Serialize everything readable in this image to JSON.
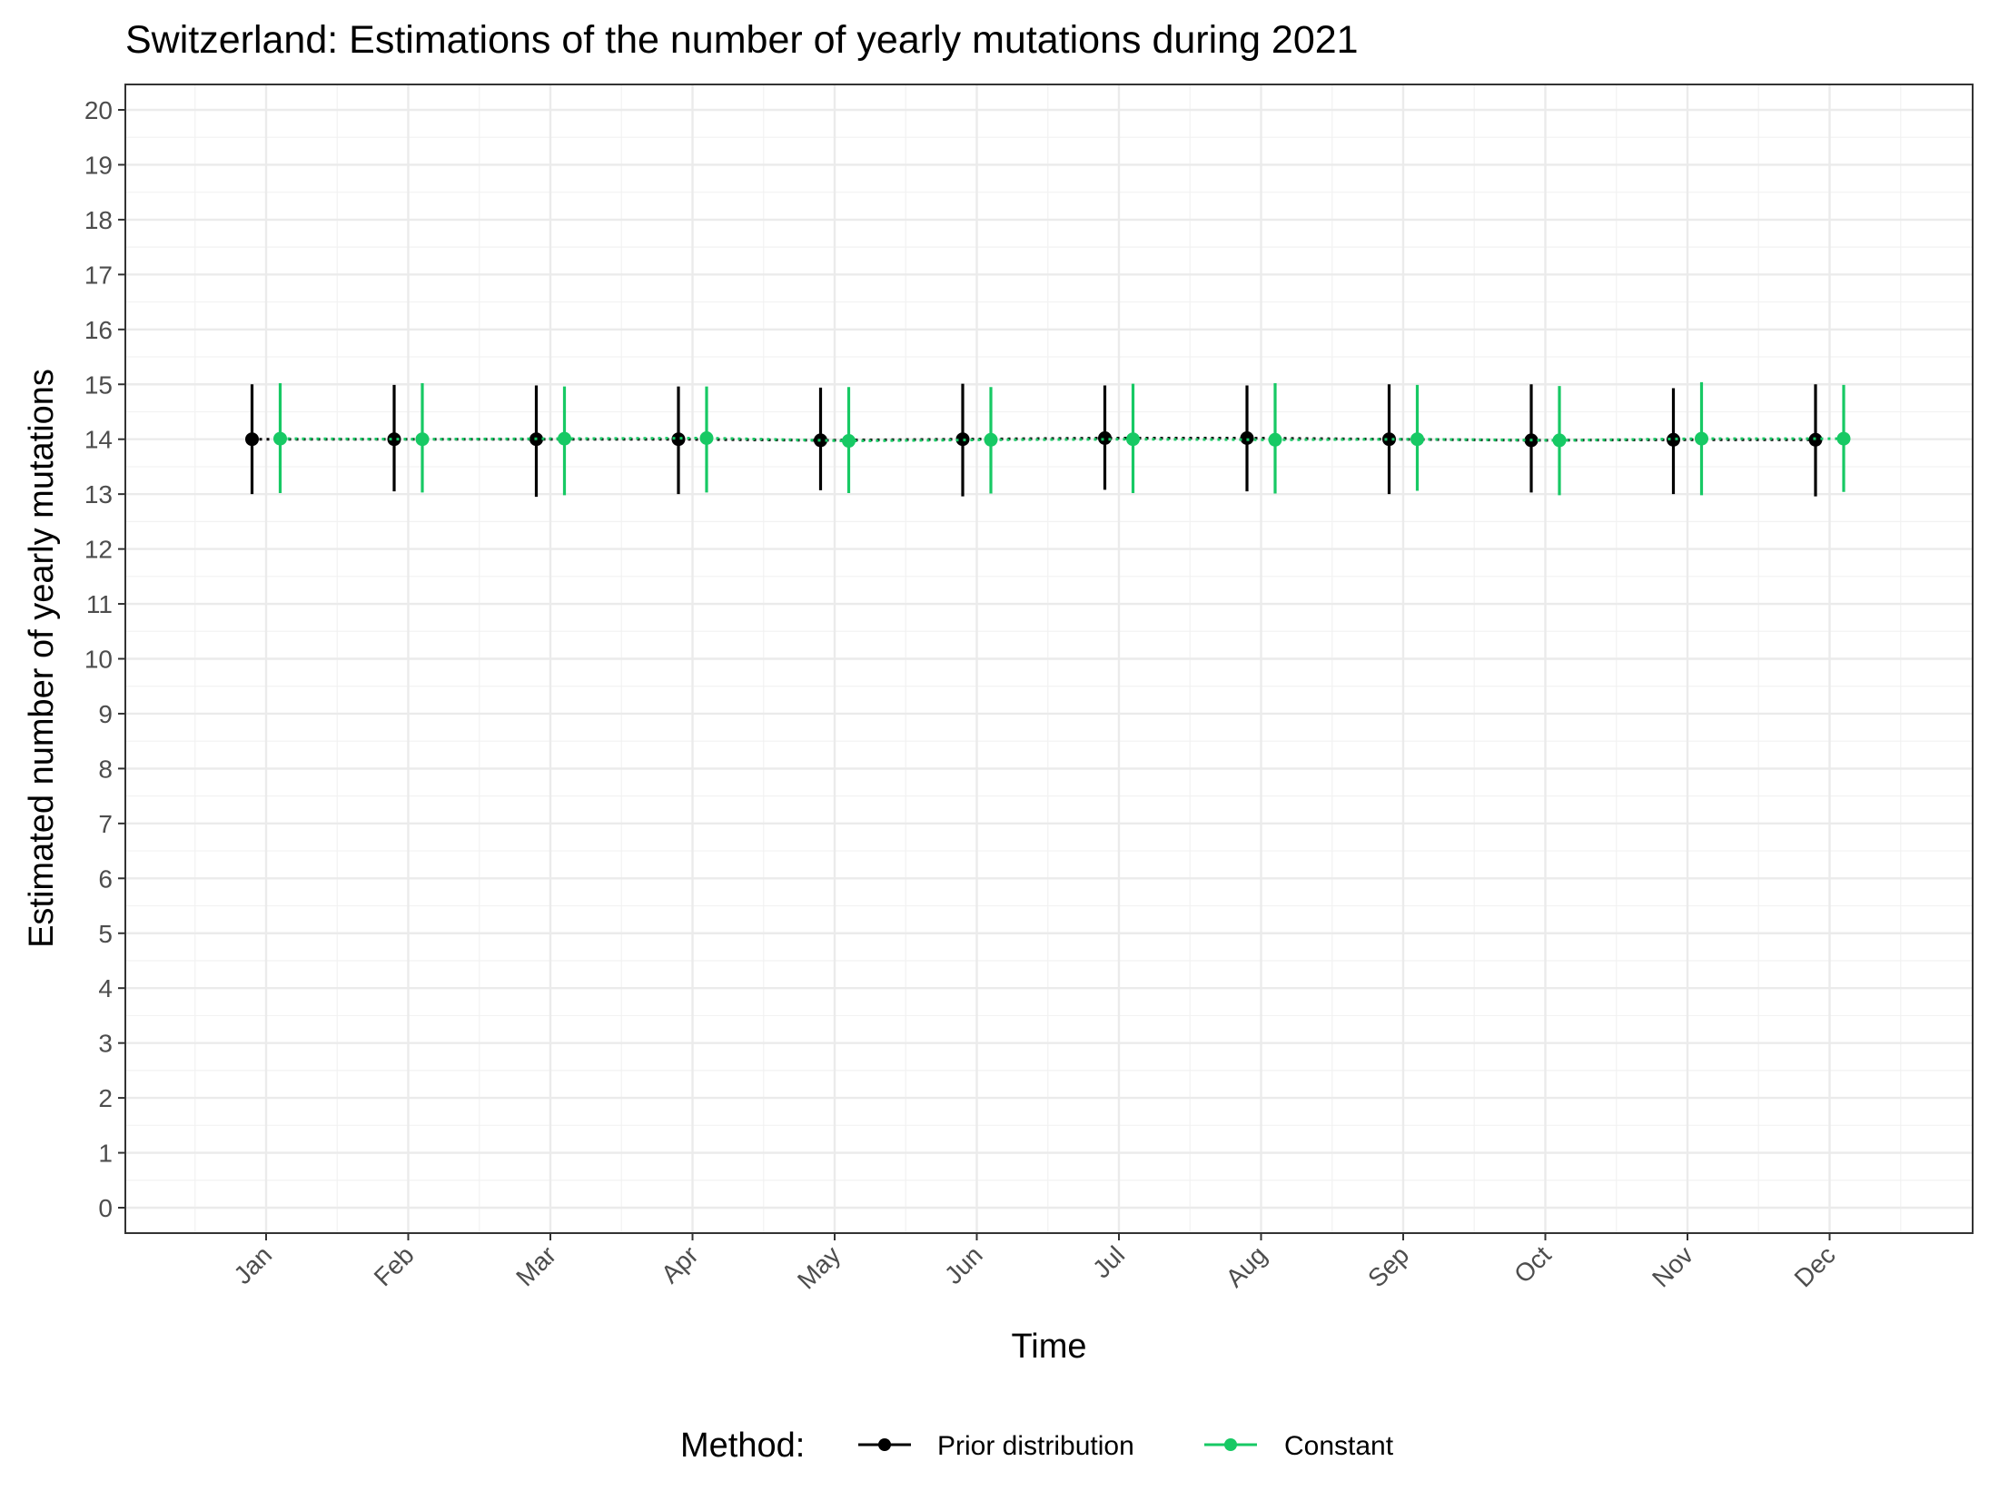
{
  "chart_data": {
    "type": "line",
    "title": "Switzerland: Estimations of the number of yearly mutations during 2021",
    "xlabel": "Time",
    "ylabel": "Estimated number of yearly mutations",
    "categories": [
      "Jan",
      "Feb",
      "Mar",
      "Apr",
      "May",
      "Jun",
      "Jul",
      "Aug",
      "Sep",
      "Oct",
      "Nov",
      "Dec"
    ],
    "ylim": [
      0,
      20
    ],
    "yticks": [
      "0",
      "1",
      "2",
      "3",
      "4",
      "5",
      "6",
      "7",
      "8",
      "9",
      "10",
      "11",
      "12",
      "13",
      "14",
      "15",
      "16",
      "17",
      "18",
      "19",
      "20"
    ],
    "grid": true,
    "legend": {
      "title": "Method:",
      "position": "bottom"
    },
    "series": [
      {
        "name": "Prior distribution",
        "color": "#000000",
        "values": [
          14.0,
          14.0,
          14.0,
          14.0,
          13.98,
          14.0,
          14.02,
          14.02,
          14.0,
          13.98,
          13.99,
          13.99
        ],
        "lower": [
          13.0,
          13.05,
          12.95,
          13.0,
          13.07,
          12.96,
          13.08,
          13.05,
          13.0,
          13.03,
          13.0,
          12.96
        ],
        "upper": [
          15.0,
          14.99,
          14.98,
          14.96,
          14.94,
          15.01,
          14.98,
          14.98,
          15.0,
          15.0,
          14.93,
          15.0
        ]
      },
      {
        "name": "Constant",
        "color": "#17c964",
        "values": [
          14.01,
          14.0,
          14.01,
          14.02,
          13.97,
          13.99,
          14.0,
          13.99,
          14.0,
          13.98,
          14.01,
          14.01
        ],
        "lower": [
          13.02,
          13.03,
          12.98,
          13.03,
          13.02,
          13.01,
          13.02,
          13.01,
          13.06,
          12.98,
          12.98,
          13.04
        ],
        "upper": [
          15.02,
          15.02,
          14.96,
          14.96,
          14.95,
          14.95,
          15.01,
          15.02,
          14.99,
          14.97,
          15.04,
          14.99
        ]
      }
    ]
  }
}
